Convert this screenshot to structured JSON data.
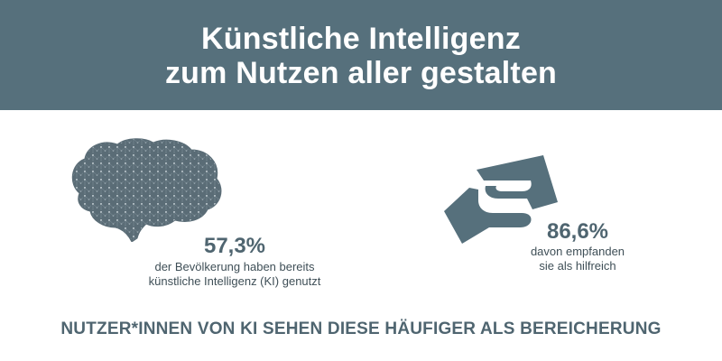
{
  "header": {
    "title_line1": "Künstliche Intelligenz",
    "title_line2": "zum Nutzen aller gestalten"
  },
  "stats": [
    {
      "icon": "brain-icon",
      "value": "57,3%",
      "desc_line1": "der Bevölkerung haben bereits",
      "desc_line2": "künstliche Intelligenz (KI) genutzt"
    },
    {
      "icon": "handshake-icon",
      "value": "86,6%",
      "desc_line1": "davon empfanden",
      "desc_line2": "sie als hilfreich"
    }
  ],
  "footer": {
    "text": "NUTZER*INNEN VON KI SEHEN DIESE HÄUFIGER ALS BEREICHERUNG"
  },
  "colors": {
    "header_bg": "#56707c",
    "accent_text": "#4f6570",
    "body_text": "#3f4f57"
  }
}
